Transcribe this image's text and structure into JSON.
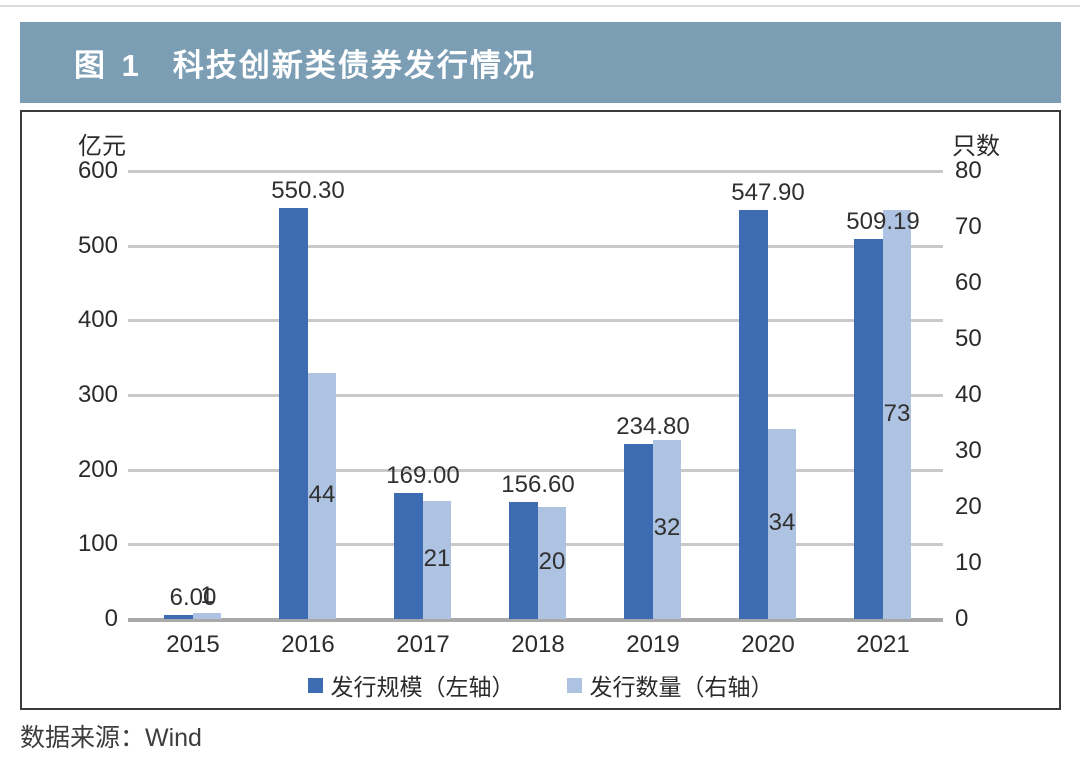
{
  "figure": {
    "label": "图 1",
    "title": "科技创新类债券发行情况"
  },
  "source_note": "数据来源：Wind",
  "colors": {
    "title_bar_bg": "#7c9eb5",
    "title_text": "#ffffff",
    "series_dark": "#3e6cb3",
    "series_light": "#aec3e1",
    "grid": "#c9c9c9",
    "baseline": "#a9a9a9",
    "box_border": "#3b3b3b",
    "text": "#2b2b2b"
  },
  "chart_data": {
    "type": "bar",
    "title": "科技创新类债券发行情况",
    "categories": [
      "2015",
      "2016",
      "2017",
      "2018",
      "2019",
      "2020",
      "2021"
    ],
    "series": [
      {
        "name": "发行规模（左轴）",
        "axis": "left",
        "color": "#3e6cb3",
        "values": [
          6.0,
          550.3,
          169.0,
          156.6,
          234.8,
          547.9,
          509.19
        ],
        "labels": [
          "6.00",
          "550.30",
          "169.00",
          "156.60",
          "234.80",
          "547.90",
          "509.19"
        ]
      },
      {
        "name": "发行数量（右轴）",
        "axis": "right",
        "color": "#aec3e1",
        "values": [
          1,
          44,
          21,
          20,
          32,
          34,
          73
        ],
        "labels": [
          "1",
          "44",
          "21",
          "20",
          "32",
          "34",
          "73"
        ]
      }
    ],
    "left_axis": {
      "title": "亿元",
      "min": 0,
      "max": 600,
      "tick_step": 100,
      "ticks": [
        "600",
        "500",
        "400",
        "300",
        "200",
        "100",
        "0"
      ]
    },
    "right_axis": {
      "title": "只数",
      "min": 0,
      "max": 80,
      "tick_step": 10,
      "ticks": [
        "80",
        "70",
        "60",
        "50",
        "40",
        "30",
        "20",
        "10",
        "0"
      ]
    },
    "grid": "horizontal gridlines at left-axis ticks",
    "legend_position": "bottom"
  }
}
